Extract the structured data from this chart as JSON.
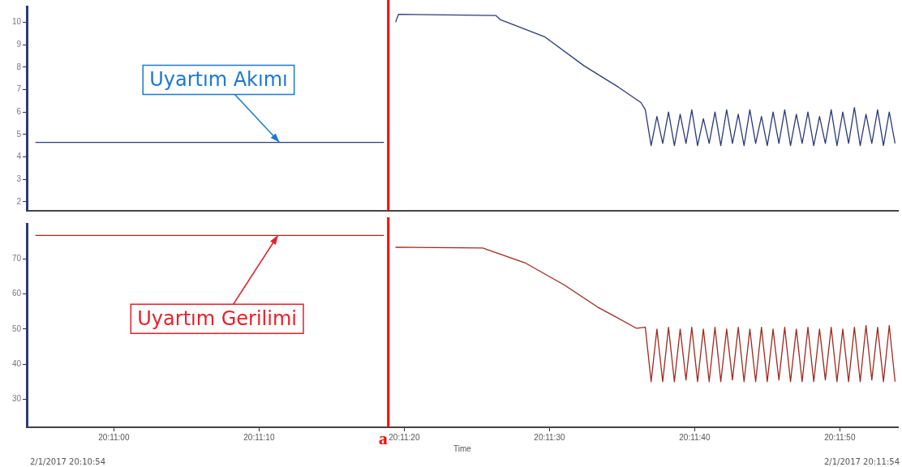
{
  "chart_data": [
    {
      "type": "line",
      "xlim": [
        20.181667,
        20.198333
      ],
      "ylim": [
        1.6,
        10.7
      ],
      "yticks": [
        2,
        3,
        4,
        5,
        6,
        7,
        8,
        9,
        10
      ],
      "tick_labels": "y",
      "series": [
        {
          "color": "#2b3a7a",
          "x": [
            20.181833,
            20.1885,
            20.188583,
            20.188722,
            20.188778,
            20.190639,
            20.190722,
            20.191583,
            20.192333,
            20.192972,
            20.193417,
            20.1935,
            20.193611,
            20.193722,
            20.193833,
            20.193944,
            20.194056,
            20.194167,
            20.194278,
            20.194389,
            20.1945,
            20.194611,
            20.194722,
            20.194833,
            20.194944,
            20.195056,
            20.195167,
            20.195278,
            20.195389,
            20.1955,
            20.195611,
            20.195722,
            20.195833,
            20.195944,
            20.196056,
            20.196167,
            20.196278,
            20.196389,
            20.1965,
            20.196611,
            20.196722,
            20.196833,
            20.196944,
            20.197056,
            20.197167,
            20.197278,
            20.197389,
            20.1975,
            20.197611,
            20.197722,
            20.197833,
            20.197944,
            20.198056,
            20.198167,
            20.198278
          ],
          "values": [
            4.65,
            4.65,
            null,
            10.0,
            10.35,
            10.3,
            10.12,
            9.34,
            8.05,
            7.13,
            6.42,
            6.1,
            4.5,
            5.8,
            4.6,
            6.0,
            4.5,
            5.9,
            4.6,
            6.1,
            4.5,
            5.7,
            4.6,
            6.0,
            4.5,
            6.1,
            4.6,
            5.9,
            4.5,
            6.1,
            4.6,
            5.8,
            4.5,
            6.0,
            4.6,
            6.1,
            4.5,
            5.9,
            4.6,
            6.0,
            4.5,
            5.8,
            4.6,
            6.1,
            4.5,
            6.0,
            4.6,
            6.2,
            4.5,
            5.9,
            4.6,
            6.1,
            4.5,
            6.0,
            4.6
          ]
        }
      ],
      "ref_lines": [
        {
          "axis": "x",
          "value": 20.188583,
          "color": "#ff0000"
        }
      ],
      "annotations": [
        {
          "text": "Uyartım Akımı",
          "x": 20.1865,
          "y": 4.65
        }
      ]
    },
    {
      "type": "line",
      "xlabel": "Time",
      "xlim": [
        20.181667,
        20.198333
      ],
      "xticks": [
        {
          "value": 20.183333,
          "label": "20:11:00"
        },
        {
          "value": 20.186111,
          "label": "20:11:10"
        },
        {
          "value": 20.188889,
          "label": "20:11:20"
        },
        {
          "value": 20.191667,
          "label": "20:11:30"
        },
        {
          "value": 20.194444,
          "label": "20:11:40"
        },
        {
          "value": 20.197222,
          "label": "20:11:50"
        }
      ],
      "ylim": [
        22,
        80
      ],
      "yticks": [
        30,
        40,
        50,
        60,
        70
      ],
      "series": [
        {
          "color": "#a0281e",
          "x": [
            20.181833,
            20.1885,
            20.188583,
            20.188722,
            20.190389,
            20.191194,
            20.191944,
            20.192583,
            20.193333,
            20.1935,
            20.193611,
            20.193722,
            20.193833,
            20.193944,
            20.194056,
            20.194167,
            20.194278,
            20.194389,
            20.1945,
            20.194611,
            20.194722,
            20.194833,
            20.194944,
            20.195056,
            20.195167,
            20.195278,
            20.195389,
            20.1955,
            20.195611,
            20.195722,
            20.195833,
            20.195944,
            20.196056,
            20.196167,
            20.196278,
            20.196389,
            20.1965,
            20.196611,
            20.196722,
            20.196833,
            20.196944,
            20.197056,
            20.197167,
            20.197278,
            20.197389,
            20.1975,
            20.197611,
            20.197722,
            20.197833,
            20.197944,
            20.198056,
            20.198167,
            20.198278
          ],
          "values": [
            76.7,
            76.7,
            null,
            73.3,
            73.1,
            68.9,
            62.6,
            56.3,
            50.2,
            50.5,
            35,
            50,
            35,
            50.5,
            35,
            50,
            35.5,
            50.5,
            35,
            50,
            35,
            50.5,
            35,
            50,
            35.5,
            50.5,
            35,
            50,
            35,
            50.5,
            35,
            50,
            35.5,
            50.5,
            35,
            50,
            35,
            50.5,
            35,
            50,
            35.5,
            50.5,
            35,
            50,
            35,
            50.5,
            35,
            51,
            35.5,
            50.5,
            35,
            51,
            35
          ]
        }
      ],
      "ref_lines": [
        {
          "axis": "x",
          "value": 20.188583,
          "label": "a",
          "color": "#ff0000"
        }
      ],
      "annotations": [
        {
          "text": "Uyartım Gerilimi",
          "x": 20.186472,
          "y": 76.7
        },
        "2/1/2017 20:10:54",
        "2/1/2017 20:11:54"
      ]
    }
  ]
}
